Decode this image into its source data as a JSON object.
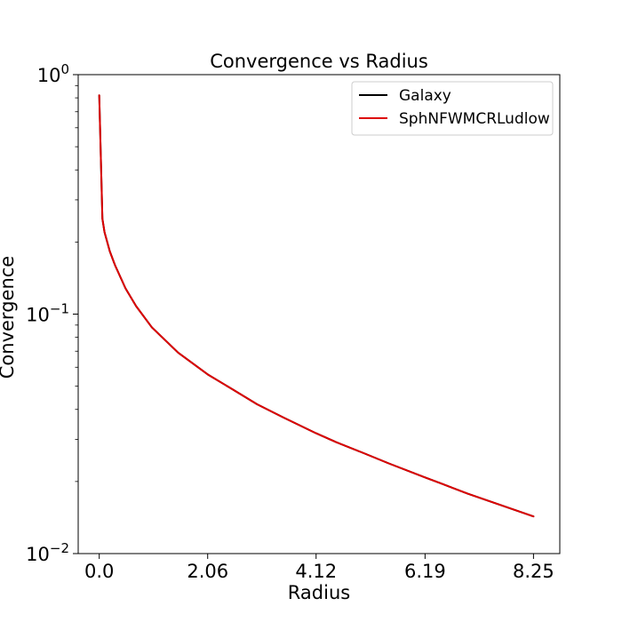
{
  "chart_data": {
    "type": "line",
    "title": "Convergence vs Radius",
    "xlabel": "Radius",
    "ylabel": "Convergence",
    "x_ticks": [
      "0.0",
      "2.06",
      "4.12",
      "6.19",
      "8.25"
    ],
    "x_tick_values": [
      0.0,
      2.06,
      4.12,
      6.19,
      8.25
    ],
    "y_ticks": [
      {
        "value": 0.01,
        "base": "10",
        "exp": "−2"
      },
      {
        "value": 0.1,
        "base": "10",
        "exp": "−1"
      },
      {
        "value": 1,
        "base": "10",
        "exp": "0"
      }
    ],
    "xlim": [
      -0.4,
      8.75
    ],
    "ylim": [
      0.01,
      1
    ],
    "yscale": "log",
    "grid": false,
    "legend_position": "top-right",
    "series": [
      {
        "name": "Galaxy",
        "color": "#000000",
        "x": [
          0.0,
          0.06,
          0.1,
          0.2,
          0.3,
          0.5,
          0.7,
          1.0,
          1.5,
          2.06,
          2.5,
          3.0,
          3.5,
          4.12,
          4.5,
          5.0,
          5.5,
          6.19,
          6.5,
          7.0,
          7.5,
          8.25
        ],
        "y": [
          0.82,
          0.25,
          0.22,
          0.183,
          0.16,
          0.128,
          0.108,
          0.088,
          0.069,
          0.056,
          0.049,
          0.042,
          0.037,
          0.0318,
          0.0292,
          0.0264,
          0.0238,
          0.0208,
          0.0196,
          0.0178,
          0.0163,
          0.0143
        ]
      },
      {
        "name": "SphNFWMCRLudlow",
        "color": "#dd0000",
        "x": [
          0.0,
          0.06,
          0.1,
          0.2,
          0.3,
          0.5,
          0.7,
          1.0,
          1.5,
          2.06,
          2.5,
          3.0,
          3.5,
          4.12,
          4.5,
          5.0,
          5.5,
          6.19,
          6.5,
          7.0,
          7.5,
          8.25
        ],
        "y": [
          0.82,
          0.25,
          0.22,
          0.183,
          0.16,
          0.128,
          0.108,
          0.088,
          0.069,
          0.056,
          0.049,
          0.042,
          0.037,
          0.0318,
          0.0292,
          0.0264,
          0.0238,
          0.0208,
          0.0196,
          0.0178,
          0.0163,
          0.0143
        ]
      }
    ]
  }
}
